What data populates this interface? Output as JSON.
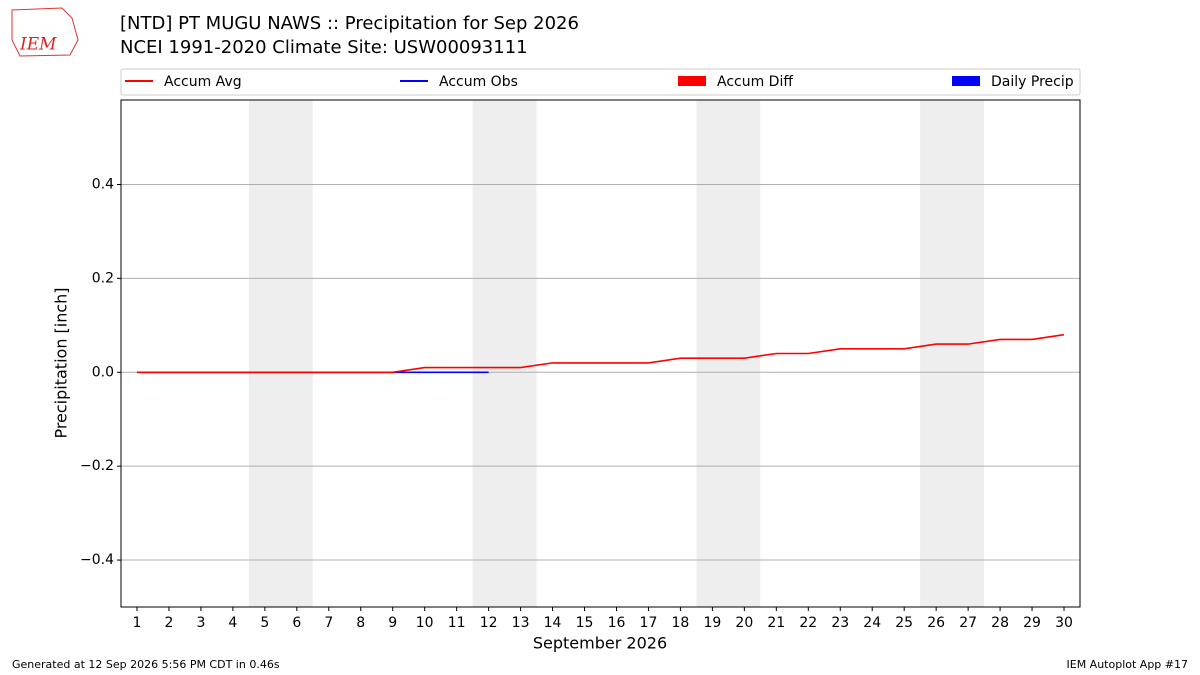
{
  "logo": "IEM",
  "footer_left": "Generated at 12 Sep 2026 5:56 PM CDT in 0.46s",
  "footer_right": "IEM Autoplot App #17",
  "chart_data": {
    "type": "line",
    "title": "[NTD] PT MUGU NAWS :: Precipitation for Sep 2026",
    "subtitle": "NCEI 1991-2020 Climate Site: USW00093111",
    "xlabel": "September 2026",
    "ylabel": "Precipitation [inch]",
    "x": [
      1,
      2,
      3,
      4,
      5,
      6,
      7,
      8,
      9,
      10,
      11,
      12,
      13,
      14,
      15,
      16,
      17,
      18,
      19,
      20,
      21,
      22,
      23,
      24,
      25,
      26,
      27,
      28,
      29,
      30
    ],
    "xlim": [
      0.5,
      30.5
    ],
    "xticks": [
      1,
      2,
      3,
      4,
      5,
      6,
      7,
      8,
      9,
      10,
      11,
      12,
      13,
      14,
      15,
      16,
      17,
      18,
      19,
      20,
      21,
      22,
      23,
      24,
      25,
      26,
      27,
      28,
      29,
      30
    ],
    "ylim": [
      -0.5,
      0.58
    ],
    "yticks": [
      {
        "value": -0.4,
        "label": "−0.4"
      },
      {
        "value": -0.2,
        "label": "−0.2"
      },
      {
        "value": 0,
        "label": "0.0"
      },
      0.2,
      0.4
    ],
    "grid": true,
    "shaded": [
      [
        4.5,
        6.5
      ],
      [
        11.5,
        13.5
      ],
      [
        18.5,
        20.5
      ],
      [
        25.5,
        27.5
      ]
    ],
    "series": [
      {
        "name": "Accum Avg",
        "type": "line",
        "color": "#ff0000",
        "values": [
          0,
          0,
          0,
          0,
          0,
          0,
          0,
          0,
          0,
          0.01,
          0.01,
          0.01,
          0.01,
          0.02,
          0.02,
          0.02,
          0.02,
          0.03,
          0.03,
          0.03,
          0.04,
          0.04,
          0.05,
          0.05,
          0.05,
          0.06,
          0.06,
          0.07,
          0.07,
          0.08
        ]
      },
      {
        "name": "Accum Obs",
        "type": "line",
        "color": "#0000ff",
        "values": [
          0,
          0,
          0,
          0,
          0,
          0,
          0,
          0,
          0,
          0,
          0,
          0,
          null,
          null,
          null,
          null,
          null,
          null,
          null,
          null,
          null,
          null,
          null,
          null,
          null,
          null,
          null,
          null,
          null,
          null
        ]
      },
      {
        "name": "Accum Diff",
        "type": "bar",
        "color": "#ff0000",
        "values": [
          0,
          0,
          0,
          0,
          0,
          0,
          0,
          0,
          0,
          0,
          0,
          0,
          null,
          null,
          null,
          null,
          null,
          null,
          null,
          null,
          null,
          null,
          null,
          null,
          null,
          null,
          null,
          null,
          null,
          null
        ]
      },
      {
        "name": "Daily Precip",
        "type": "bar",
        "color": "#0000ff",
        "values": [
          0,
          0,
          0,
          0,
          0,
          0,
          0,
          0,
          0,
          0,
          0,
          0,
          null,
          null,
          null,
          null,
          null,
          null,
          null,
          null,
          null,
          null,
          null,
          null,
          null,
          null,
          null,
          null,
          null,
          null
        ]
      }
    ]
  }
}
